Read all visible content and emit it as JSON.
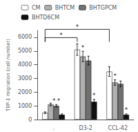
{
  "chart_data": {
    "type": "bar",
    "categories": [
      ".",
      "D3-2",
      "CCL-42"
    ],
    "series": [
      {
        "name": "CM",
        "color": "#ffffff",
        "values": [
          500,
          5100,
          3500
        ],
        "errors": [
          60,
          420,
          350
        ]
      },
      {
        "name": "BHTCM",
        "color": "#b0b0b0",
        "values": [
          1100,
          4600,
          2700
        ],
        "errors": [
          100,
          380,
          200
        ]
      },
      {
        "name": "BHTGPCM",
        "color": "#707070",
        "values": [
          1000,
          4300,
          2600
        ],
        "errors": [
          90,
          320,
          210
        ]
      },
      {
        "name": "BHTD6CM",
        "color": "#101010",
        "values": [
          350,
          1300,
          350
        ],
        "errors": [
          60,
          180,
          60
        ]
      }
    ],
    "ylabel": "TIIP-1 migration (cell number)",
    "ylim": [
      0,
      6500
    ],
    "yticks": [
      0,
      1000,
      2000,
      3000,
      4000,
      5000,
      6000
    ],
    "grid": false,
    "legend": "top",
    "annotations": [
      {
        "text": "*",
        "from": ".",
        "to": "D3-2",
        "series": "CM"
      },
      {
        "text": "*",
        "from": ".",
        "to": "CCL-42",
        "series": "CM"
      },
      {
        "text": "* *",
        "category": ".",
        "series": "BHTGPCM"
      },
      {
        "text": "*",
        "category": "D3-2",
        "series": "BHTCM"
      },
      {
        "text": "*",
        "category": "D3-2",
        "series": "BHTD6CM"
      },
      {
        "text": "*",
        "category": "CCL-42",
        "series": "BHTCM"
      },
      {
        "text": "*",
        "category": "CCL-42",
        "series": "BHTD6CM"
      }
    ]
  }
}
